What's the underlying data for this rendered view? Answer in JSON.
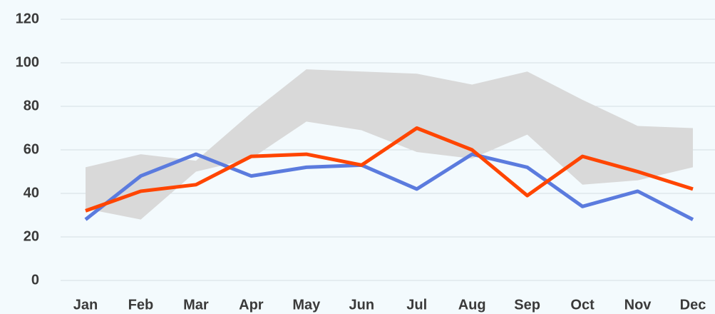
{
  "chart_data": {
    "type": "line",
    "categories": [
      "Jan",
      "Feb",
      "Mar",
      "Apr",
      "May",
      "Jun",
      "Jul",
      "Aug",
      "Sep",
      "Oct",
      "Nov",
      "Dec"
    ],
    "band": {
      "color": "#d9d9d9",
      "upper": [
        52,
        58,
        55,
        77,
        97,
        96,
        95,
        90,
        96,
        83,
        71,
        70
      ],
      "lower": [
        33,
        28,
        50,
        56,
        73,
        69,
        59,
        56,
        67,
        44,
        46,
        52
      ]
    },
    "series": [
      {
        "color": "#5b7bde",
        "values": [
          28,
          48,
          58,
          48,
          52,
          53,
          42,
          58,
          52,
          34,
          41,
          28
        ]
      },
      {
        "color": "#ff4500",
        "values": [
          32,
          41,
          44,
          57,
          58,
          53,
          70,
          60,
          39,
          57,
          50,
          42
        ]
      }
    ],
    "ylim": [
      0,
      120
    ],
    "yticks": [
      0,
      20,
      40,
      60,
      80,
      100,
      120
    ],
    "grid": true
  }
}
